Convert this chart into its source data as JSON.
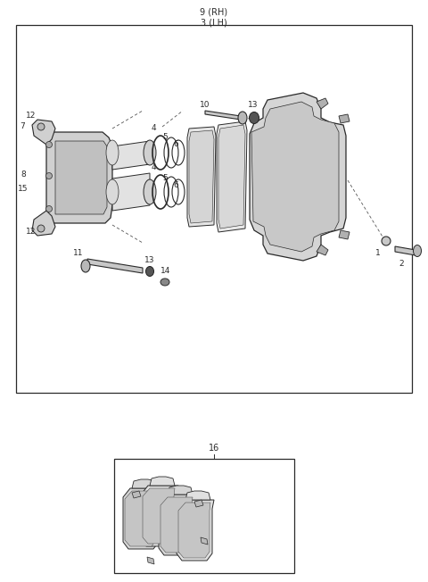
{
  "fig_width": 4.8,
  "fig_height": 6.52,
  "dpi": 100,
  "lc": "#2a2a2a",
  "gray1": "#d0d0d0",
  "gray2": "#b8b8b8",
  "gray3": "#e8e8e8",
  "gray4": "#c8c8c8",
  "white": "#ffffff",
  "label_9rh": "9 (RH)",
  "label_3lh": "3 (LH)",
  "label_16": "16",
  "fs": 6.5,
  "fs_hdr": 7.0
}
